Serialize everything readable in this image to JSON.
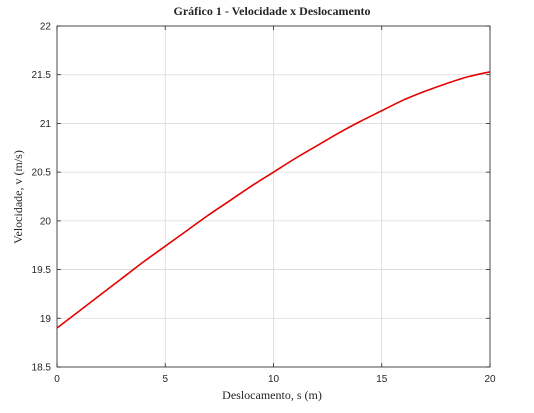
{
  "chart_data": {
    "type": "line",
    "title": "Gráfico 1 - Velocidade x Deslocamento",
    "xlabel": "Deslocamento, s (m)",
    "ylabel": "Velocidade, v (m/s)",
    "xlim": [
      0,
      20
    ],
    "ylim": [
      18.5,
      22
    ],
    "xticks": [
      0,
      5,
      10,
      15,
      20
    ],
    "xtick_labels": [
      "0",
      "5",
      "10",
      "15",
      "20"
    ],
    "yticks": [
      18.5,
      19,
      19.5,
      20,
      20.5,
      21,
      21.5,
      22
    ],
    "ytick_labels": [
      "18.5",
      "19",
      "19.5",
      "20",
      "20.5",
      "21",
      "21.5",
      "22"
    ],
    "grid": true,
    "legend": "none",
    "series": [
      {
        "color": "#e60000",
        "x": [
          0,
          1,
          2,
          3,
          4,
          5,
          6,
          7,
          8,
          9,
          10,
          11,
          12,
          13,
          14,
          15,
          16,
          17,
          18,
          19,
          20
        ],
        "y": [
          18.9,
          19.07,
          19.24,
          19.41,
          19.58,
          19.74,
          19.9,
          20.06,
          20.21,
          20.36,
          20.5,
          20.64,
          20.77,
          20.9,
          21.02,
          21.13,
          21.24,
          21.33,
          21.41,
          21.48,
          21.53
        ]
      }
    ]
  }
}
